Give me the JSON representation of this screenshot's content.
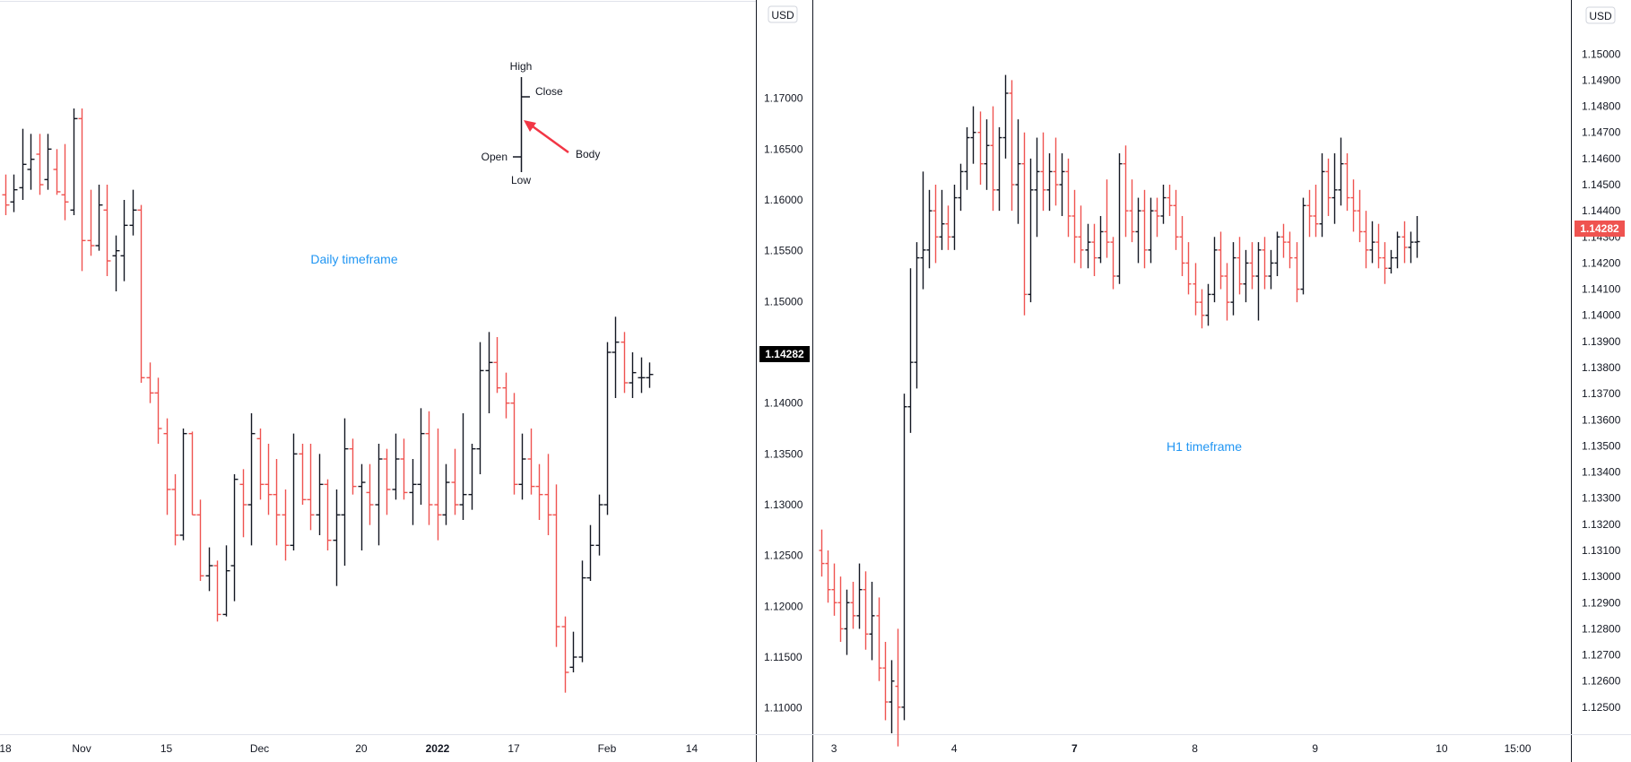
{
  "colors": {
    "up": "#131722",
    "down": "#ef5350",
    "label": "#2196f3",
    "price_tag_left": "#000000",
    "price_tag_right": "#ef5350",
    "arrow": "#f23645"
  },
  "legend": {
    "high": "High",
    "close": "Close",
    "open": "Open",
    "low": "Low",
    "body": "Body"
  },
  "chart_data": [
    {
      "type": "ohlc",
      "label": "Daily timeframe",
      "currency": "USD",
      "last_price": "1.14282",
      "ylim": [
        1.1075,
        1.1795
      ],
      "y_ticks": [
        "1.17000",
        "1.16500",
        "1.16000",
        "1.15500",
        "1.15000",
        "1.14500",
        "1.14000",
        "1.13500",
        "1.13000",
        "1.12500",
        "1.12000",
        "1.11500",
        "1.11000"
      ],
      "x_ticks": [
        {
          "label": "18",
          "bar": 0
        },
        {
          "label": "Nov",
          "bar": 9
        },
        {
          "label": "15",
          "bar": 19
        },
        {
          "label": "Dec",
          "bar": 30
        },
        {
          "label": "20",
          "bar": 42
        },
        {
          "label": "2022",
          "bar": 51,
          "bold": true
        },
        {
          "label": "17",
          "bar": 60
        },
        {
          "label": "Feb",
          "bar": 71
        },
        {
          "label": "14",
          "bar": 81
        }
      ],
      "ohlc": [
        [
          1.1605,
          1.1625,
          1.1585,
          1.1595
        ],
        [
          1.1598,
          1.1625,
          1.1588,
          1.161
        ],
        [
          1.1612,
          1.167,
          1.16,
          1.1635
        ],
        [
          1.163,
          1.1665,
          1.161,
          1.164
        ],
        [
          1.1645,
          1.1665,
          1.1605,
          1.1615
        ],
        [
          1.162,
          1.1665,
          1.161,
          1.165
        ],
        [
          1.163,
          1.165,
          1.1605,
          1.1608
        ],
        [
          1.1605,
          1.1655,
          1.158,
          1.1598
        ],
        [
          1.159,
          1.169,
          1.1585,
          1.168
        ],
        [
          1.168,
          1.169,
          1.153,
          1.156
        ],
        [
          1.156,
          1.161,
          1.1545,
          1.1555
        ],
        [
          1.1555,
          1.1615,
          1.155,
          1.1595
        ],
        [
          1.159,
          1.1615,
          1.1525,
          1.154
        ],
        [
          1.1545,
          1.1565,
          1.151,
          1.155
        ],
        [
          1.1545,
          1.16,
          1.152,
          1.1575
        ],
        [
          1.1575,
          1.161,
          1.1565,
          1.159
        ],
        [
          1.159,
          1.1595,
          1.142,
          1.1425
        ],
        [
          1.1425,
          1.144,
          1.14,
          1.141
        ],
        [
          1.141,
          1.1425,
          1.136,
          1.1375
        ],
        [
          1.137,
          1.1385,
          1.129,
          1.1315
        ],
        [
          1.1315,
          1.133,
          1.126,
          1.127
        ],
        [
          1.127,
          1.1375,
          1.1265,
          1.137
        ],
        [
          1.137,
          1.1372,
          1.129,
          1.129
        ],
        [
          1.129,
          1.1305,
          1.1225,
          1.123
        ],
        [
          1.123,
          1.1258,
          1.1215,
          1.124
        ],
        [
          1.124,
          1.1245,
          1.1185,
          1.1192
        ],
        [
          1.1192,
          1.126,
          1.119,
          1.1235
        ],
        [
          1.124,
          1.133,
          1.1205,
          1.1325
        ],
        [
          1.132,
          1.1335,
          1.1268,
          1.13
        ],
        [
          1.13,
          1.139,
          1.126,
          1.137
        ],
        [
          1.1365,
          1.1375,
          1.1305,
          1.132
        ],
        [
          1.132,
          1.136,
          1.129,
          1.131
        ],
        [
          1.131,
          1.1345,
          1.126,
          1.129
        ],
        [
          1.129,
          1.1315,
          1.1245,
          1.126
        ],
        [
          1.126,
          1.137,
          1.1255,
          1.135
        ],
        [
          1.135,
          1.136,
          1.13,
          1.1305
        ],
        [
          1.1305,
          1.136,
          1.1275,
          1.129
        ],
        [
          1.129,
          1.135,
          1.127,
          1.132
        ],
        [
          1.132,
          1.1325,
          1.1255,
          1.1265
        ],
        [
          1.1265,
          1.1315,
          1.122,
          1.129
        ],
        [
          1.129,
          1.1385,
          1.124,
          1.1355
        ],
        [
          1.1355,
          1.1365,
          1.131,
          1.1318
        ],
        [
          1.1318,
          1.134,
          1.1255,
          1.1322
        ],
        [
          1.1312,
          1.134,
          1.128,
          1.13
        ],
        [
          1.13,
          1.136,
          1.126,
          1.1345
        ],
        [
          1.1345,
          1.1355,
          1.129,
          1.1315
        ],
        [
          1.1315,
          1.137,
          1.1305,
          1.1345
        ],
        [
          1.1345,
          1.1365,
          1.1305,
          1.1312
        ],
        [
          1.1312,
          1.1345,
          1.128,
          1.132
        ],
        [
          1.132,
          1.1395,
          1.13,
          1.137
        ],
        [
          1.137,
          1.1392,
          1.128,
          1.13
        ],
        [
          1.13,
          1.1375,
          1.1265,
          1.129
        ],
        [
          1.129,
          1.134,
          1.128,
          1.1322
        ],
        [
          1.1322,
          1.1355,
          1.129,
          1.13
        ],
        [
          1.13,
          1.139,
          1.1285,
          1.131
        ],
        [
          1.131,
          1.136,
          1.1295,
          1.1355
        ],
        [
          1.1355,
          1.146,
          1.133,
          1.1432
        ],
        [
          1.1432,
          1.147,
          1.139,
          1.144
        ],
        [
          1.144,
          1.1465,
          1.141,
          1.1415
        ],
        [
          1.1415,
          1.143,
          1.1385,
          1.14
        ],
        [
          1.14,
          1.141,
          1.131,
          1.132
        ],
        [
          1.132,
          1.137,
          1.1305,
          1.1345
        ],
        [
          1.1345,
          1.1375,
          1.131,
          1.1318
        ],
        [
          1.1318,
          1.134,
          1.1285,
          1.131
        ],
        [
          1.131,
          1.135,
          1.127,
          1.129
        ],
        [
          1.129,
          1.132,
          1.116,
          1.118
        ],
        [
          1.118,
          1.119,
          1.1115,
          1.1135
        ],
        [
          1.114,
          1.1175,
          1.1135,
          1.115
        ],
        [
          1.115,
          1.1245,
          1.1145,
          1.1228
        ],
        [
          1.1228,
          1.128,
          1.1225,
          1.126
        ],
        [
          1.126,
          1.131,
          1.125,
          1.13
        ],
        [
          1.13,
          1.146,
          1.129,
          1.145
        ],
        [
          1.145,
          1.1485,
          1.1405,
          1.146
        ],
        [
          1.146,
          1.147,
          1.141,
          1.142
        ],
        [
          1.142,
          1.145,
          1.1405,
          1.143
        ],
        [
          1.1425,
          1.1445,
          1.141,
          1.1425
        ],
        [
          1.1425,
          1.144,
          1.1415,
          1.14282
        ]
      ]
    },
    {
      "type": "ohlc",
      "label": "H1 timeframe",
      "currency": "USD",
      "last_price": "1.14282",
      "ylim": [
        1.124,
        1.152
      ],
      "y_ticks": [
        "1.15000",
        "1.14900",
        "1.14800",
        "1.14700",
        "1.14600",
        "1.14500",
        "1.14400",
        "1.14300",
        "1.14200",
        "1.14100",
        "1.14000",
        "1.13900",
        "1.13800",
        "1.13700",
        "1.13600",
        "1.13500",
        "1.13400",
        "1.13300",
        "1.13200",
        "1.13100",
        "1.13000",
        "1.12900",
        "1.12800",
        "1.12700",
        "1.12600",
        "1.12500"
      ],
      "x_ticks": [
        {
          "label": "3",
          "bar": 2
        },
        {
          "label": "4",
          "bar": 21
        },
        {
          "label": "7",
          "bar": 40,
          "bold": true
        },
        {
          "label": "8",
          "bar": 59
        },
        {
          "label": "9",
          "bar": 78
        },
        {
          "label": "10",
          "bar": 98
        },
        {
          "label": "15:00",
          "bar": 110
        }
      ],
      "ohlc": [
        [
          1.131,
          1.1318,
          1.13,
          1.1305
        ],
        [
          1.1305,
          1.131,
          1.129,
          1.1295
        ],
        [
          1.1295,
          1.1305,
          1.1285,
          1.129
        ],
        [
          1.129,
          1.13,
          1.1275,
          1.128
        ],
        [
          1.128,
          1.1295,
          1.127,
          1.129
        ],
        [
          1.129,
          1.1298,
          1.128,
          1.1285
        ],
        [
          1.1285,
          1.1305,
          1.128,
          1.1295
        ],
        [
          1.1295,
          1.1302,
          1.1272,
          1.1278
        ],
        [
          1.1278,
          1.1298,
          1.1268,
          1.1285
        ],
        [
          1.1285,
          1.1292,
          1.126,
          1.1265
        ],
        [
          1.1265,
          1.1275,
          1.1245,
          1.1252
        ],
        [
          1.1252,
          1.1268,
          1.124,
          1.126
        ],
        [
          1.1258,
          1.128,
          1.1235,
          1.125
        ],
        [
          1.125,
          1.137,
          1.1245,
          1.1365
        ],
        [
          1.1365,
          1.1418,
          1.1355,
          1.1382
        ],
        [
          1.1382,
          1.1428,
          1.1372,
          1.1422
        ],
        [
          1.1422,
          1.1455,
          1.141,
          1.1425
        ],
        [
          1.1425,
          1.1448,
          1.1418,
          1.144
        ],
        [
          1.144,
          1.145,
          1.142,
          1.143
        ],
        [
          1.143,
          1.1448,
          1.1425,
          1.1435
        ],
        [
          1.1435,
          1.1442,
          1.1425,
          1.143
        ],
        [
          1.143,
          1.145,
          1.1425,
          1.1445
        ],
        [
          1.1445,
          1.1458,
          1.144,
          1.1455
        ],
        [
          1.1455,
          1.1472,
          1.1448,
          1.1468
        ],
        [
          1.1468,
          1.148,
          1.1458,
          1.147
        ],
        [
          1.147,
          1.1478,
          1.145,
          1.1458
        ],
        [
          1.1458,
          1.1475,
          1.1448,
          1.1465
        ],
        [
          1.1465,
          1.148,
          1.144,
          1.1448
        ],
        [
          1.1448,
          1.1472,
          1.144,
          1.1468
        ],
        [
          1.1468,
          1.1492,
          1.146,
          1.1485
        ],
        [
          1.1485,
          1.149,
          1.144,
          1.145
        ],
        [
          1.145,
          1.1475,
          1.1435,
          1.1458
        ],
        [
          1.1458,
          1.147,
          1.14,
          1.1408
        ],
        [
          1.1408,
          1.146,
          1.1405,
          1.1448
        ],
        [
          1.1448,
          1.1468,
          1.143,
          1.1455
        ],
        [
          1.1455,
          1.147,
          1.144,
          1.1448
        ],
        [
          1.1448,
          1.1462,
          1.144,
          1.1455
        ],
        [
          1.1455,
          1.1468,
          1.1442,
          1.145
        ],
        [
          1.145,
          1.1462,
          1.1438,
          1.1455
        ],
        [
          1.1455,
          1.146,
          1.143,
          1.1438
        ],
        [
          1.1438,
          1.1448,
          1.142,
          1.143
        ],
        [
          1.143,
          1.1442,
          1.1418,
          1.1425
        ],
        [
          1.1425,
          1.1435,
          1.1418,
          1.1428
        ],
        [
          1.1428,
          1.1435,
          1.1415,
          1.1422
        ],
        [
          1.1422,
          1.1438,
          1.142,
          1.1432
        ],
        [
          1.1432,
          1.1452,
          1.1422,
          1.1428
        ],
        [
          1.1428,
          1.143,
          1.141,
          1.1415
        ],
        [
          1.1415,
          1.1462,
          1.1412,
          1.1458
        ],
        [
          1.1458,
          1.1465,
          1.143,
          1.144
        ],
        [
          1.144,
          1.1452,
          1.1428,
          1.1432
        ],
        [
          1.1432,
          1.1445,
          1.142,
          1.144
        ],
        [
          1.144,
          1.1448,
          1.1418,
          1.1425
        ],
        [
          1.1425,
          1.1445,
          1.142,
          1.144
        ],
        [
          1.144,
          1.1445,
          1.143,
          1.1438
        ],
        [
          1.1438,
          1.145,
          1.1435,
          1.1445
        ],
        [
          1.1445,
          1.145,
          1.1438,
          1.1442
        ],
        [
          1.1442,
          1.1448,
          1.1425,
          1.143
        ],
        [
          1.143,
          1.1438,
          1.1415,
          1.142
        ],
        [
          1.142,
          1.1428,
          1.1408,
          1.1412
        ],
        [
          1.1412,
          1.142,
          1.14,
          1.1405
        ],
        [
          1.1405,
          1.141,
          1.1395,
          1.14
        ],
        [
          1.14,
          1.1412,
          1.1396,
          1.1408
        ],
        [
          1.1408,
          1.143,
          1.1405,
          1.1425
        ],
        [
          1.1425,
          1.1432,
          1.141,
          1.1415
        ],
        [
          1.1415,
          1.142,
          1.1398,
          1.1405
        ],
        [
          1.1405,
          1.1428,
          1.14,
          1.1422
        ],
        [
          1.1422,
          1.143,
          1.1408,
          1.1412
        ],
        [
          1.1412,
          1.1425,
          1.1405,
          1.142
        ],
        [
          1.142,
          1.1428,
          1.141,
          1.1415
        ],
        [
          1.1415,
          1.1428,
          1.1398,
          1.1425
        ],
        [
          1.1425,
          1.143,
          1.141,
          1.1415
        ],
        [
          1.1415,
          1.1425,
          1.141,
          1.142
        ],
        [
          1.142,
          1.1432,
          1.1415,
          1.143
        ],
        [
          1.143,
          1.1435,
          1.1422,
          1.1428
        ],
        [
          1.1428,
          1.1432,
          1.1418,
          1.1422
        ],
        [
          1.1422,
          1.1428,
          1.1405,
          1.141
        ],
        [
          1.141,
          1.1445,
          1.1408,
          1.1442
        ],
        [
          1.1442,
          1.1448,
          1.143,
          1.1438
        ],
        [
          1.1438,
          1.145,
          1.143,
          1.1435
        ],
        [
          1.1435,
          1.1462,
          1.143,
          1.1455
        ],
        [
          1.1455,
          1.146,
          1.1438,
          1.1445
        ],
        [
          1.1445,
          1.1462,
          1.1435,
          1.1448
        ],
        [
          1.1448,
          1.1468,
          1.1442,
          1.1458
        ],
        [
          1.1458,
          1.1462,
          1.144,
          1.1445
        ],
        [
          1.1445,
          1.1452,
          1.1432,
          1.144
        ],
        [
          1.144,
          1.1448,
          1.1428,
          1.1432
        ],
        [
          1.1432,
          1.144,
          1.1418,
          1.1425
        ],
        [
          1.1425,
          1.1436,
          1.142,
          1.1428
        ],
        [
          1.1428,
          1.1435,
          1.1418,
          1.1422
        ],
        [
          1.1422,
          1.1428,
          1.1412,
          1.1418
        ],
        [
          1.1418,
          1.1425,
          1.1416,
          1.1422
        ],
        [
          1.1422,
          1.1432,
          1.1418,
          1.143
        ],
        [
          1.143,
          1.1436,
          1.142,
          1.1426
        ],
        [
          1.1426,
          1.1432,
          1.142,
          1.1428
        ],
        [
          1.1428,
          1.1438,
          1.1422,
          1.14282
        ]
      ]
    }
  ]
}
